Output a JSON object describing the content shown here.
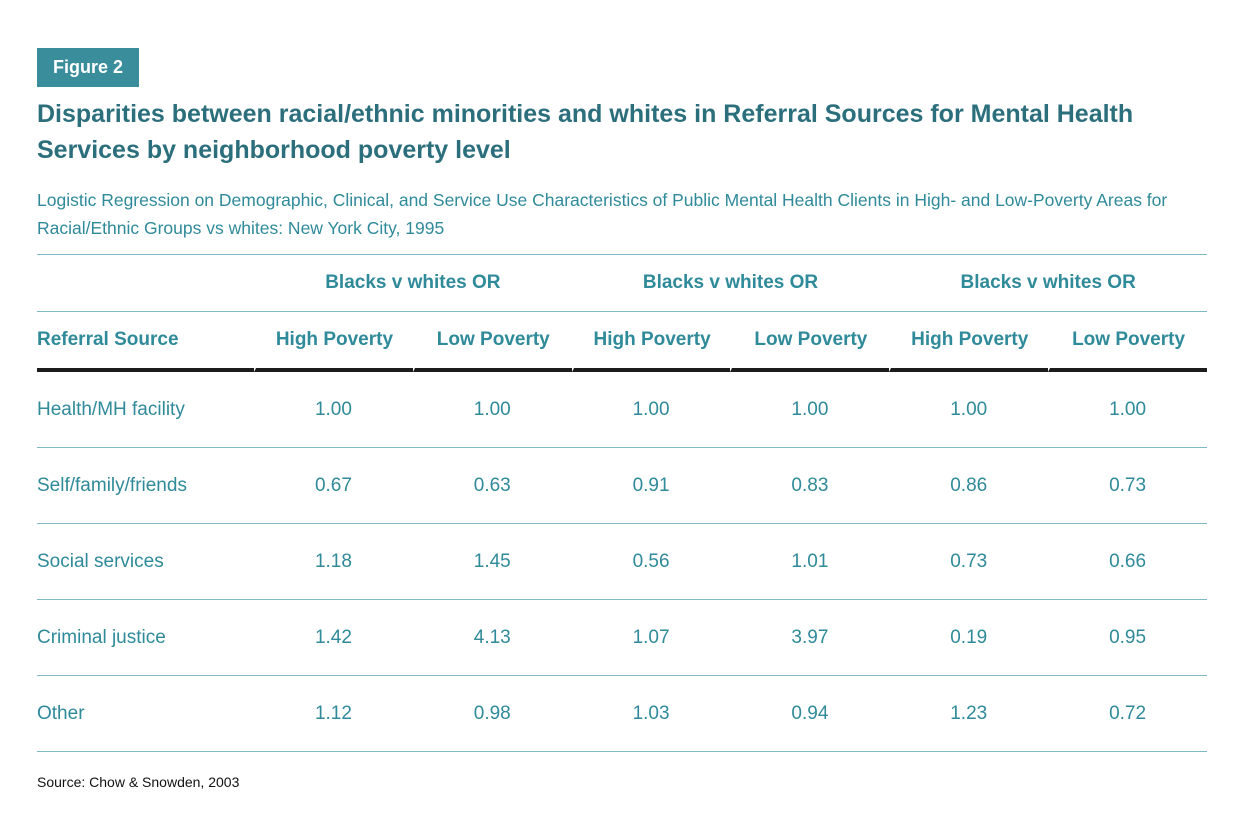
{
  "figure_label": "Figure 2",
  "title": "Disparities between racial/ethnic minorities and whites in Referral Sources for Mental Health Services by neighborhood poverty level",
  "subtitle": "Logistic Regression on Demographic, Clinical, and Service Use Characteristics of Public Mental Health Clients in High- and Low-Poverty Areas for Racial/Ethnic Groups vs whites: New York City, 1995",
  "table": {
    "group_headers": [
      "Blacks v whites OR",
      "Blacks v whites OR",
      "Blacks v whites OR"
    ],
    "columns": [
      "Referral Source",
      "High Poverty",
      "Low Poverty",
      "High Poverty",
      "Low Poverty",
      "High Poverty",
      "Low Poverty"
    ],
    "rows": [
      [
        "Health/MH facility",
        "1.00",
        "1.00",
        "1.00",
        "1.00",
        "1.00",
        "1.00"
      ],
      [
        "Self/family/friends",
        "0.67",
        "0.63",
        "0.91",
        "0.83",
        "0.86",
        "0.73"
      ],
      [
        "Social services",
        "1.18",
        "1.45",
        "0.56",
        "1.01",
        "0.73",
        "0.66"
      ],
      [
        "Criminal justice",
        "1.42",
        "4.13",
        "1.07",
        "3.97",
        "0.19",
        "0.95"
      ],
      [
        "Other",
        "1.12",
        "0.98",
        "1.03",
        "0.94",
        "1.23",
        "0.72"
      ]
    ]
  },
  "source": "Source: Chow & Snowden, 2003",
  "colors": {
    "badge": "#3a8d9b",
    "title": "#2c6f7c",
    "text": "#2f8a99",
    "rule": "#7fb9c3",
    "header_rule": "#1c1c1c"
  }
}
